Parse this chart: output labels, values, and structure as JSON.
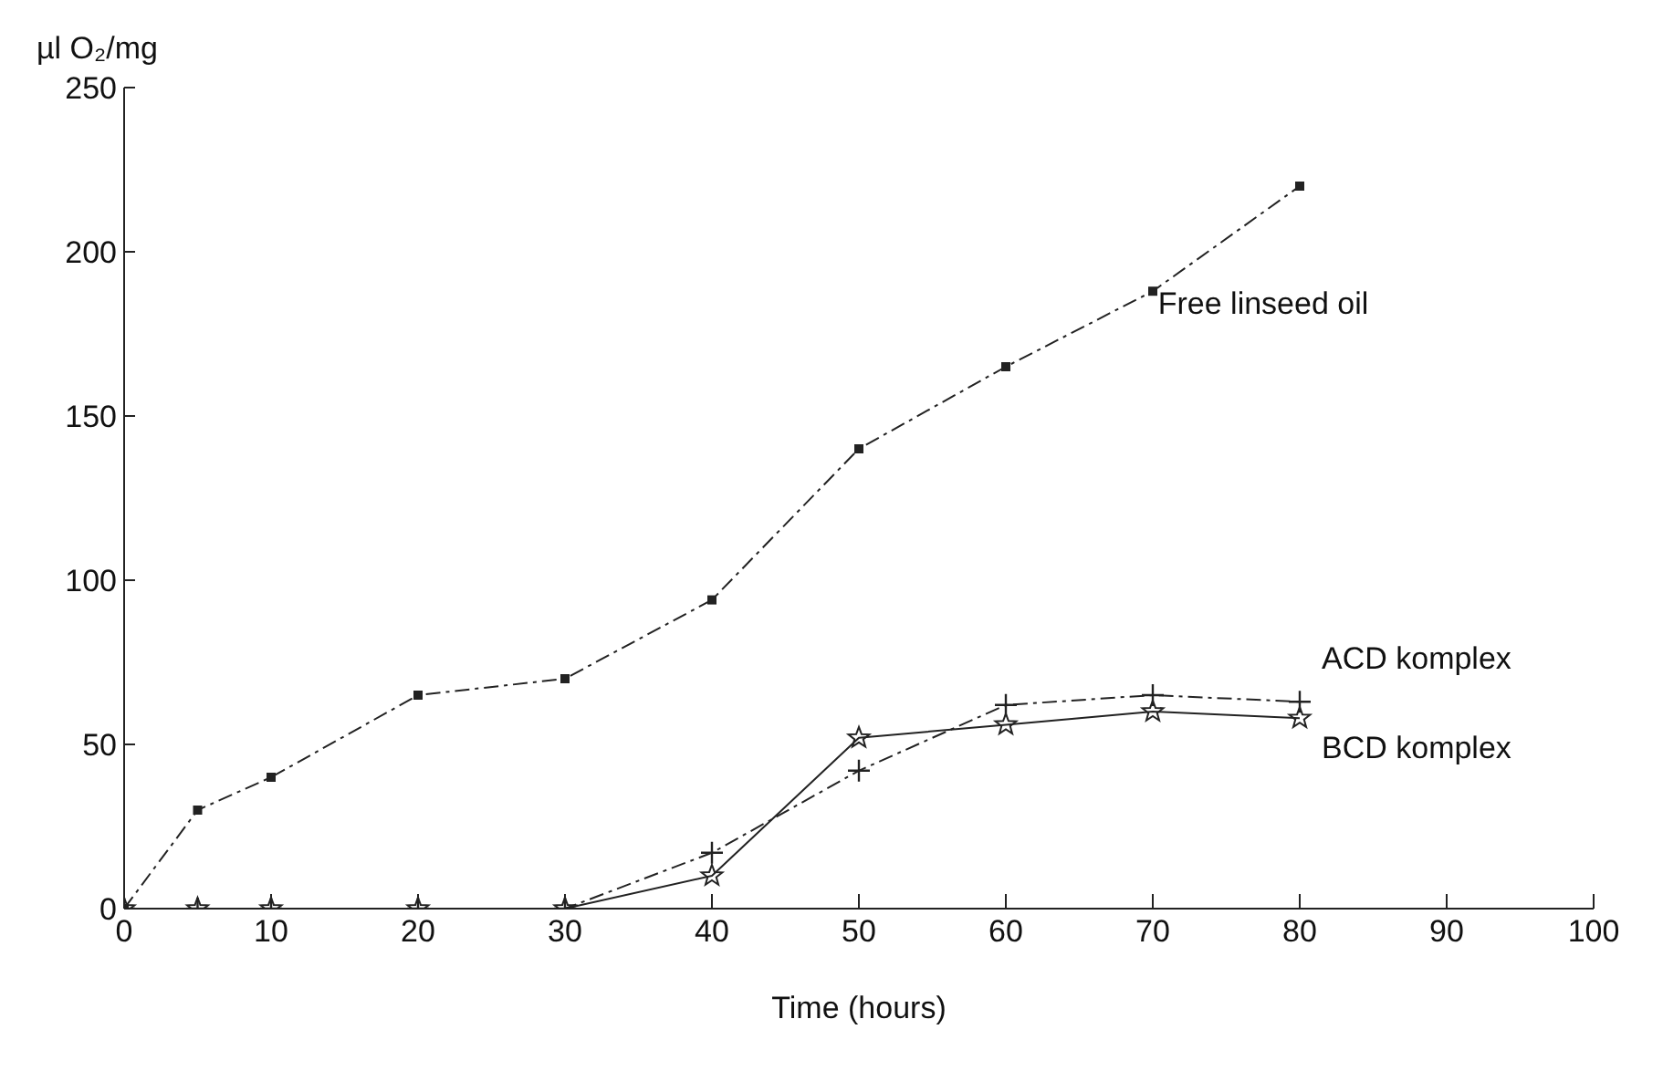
{
  "chart_data": {
    "type": "line",
    "xlabel": "Time (hours)",
    "ylabel": "µl O₂/mg",
    "xlim": [
      0,
      100
    ],
    "xticks": [
      0,
      10,
      20,
      30,
      40,
      50,
      60,
      70,
      80,
      90,
      100
    ],
    "ylim": [
      0,
      250
    ],
    "yticks": [
      0,
      50,
      100,
      150,
      200,
      250
    ],
    "grid": false,
    "legend": "right",
    "series": [
      {
        "name": "Free linseed oil",
        "color": "#222222",
        "marker": "square",
        "line_style": "dashed",
        "x": [
          0,
          5,
          10,
          20,
          30,
          40,
          50,
          60,
          70,
          80
        ],
        "values": [
          0,
          30,
          40,
          65,
          70,
          94,
          140,
          165,
          188,
          220
        ]
      },
      {
        "name": "ACD komplex",
        "color": "#222222",
        "marker": "cross",
        "line_style": "dashed",
        "x": [
          0,
          5,
          10,
          20,
          30,
          40,
          50,
          60,
          70,
          80
        ],
        "values": [
          0,
          0,
          0,
          0,
          0,
          17,
          42,
          62,
          65,
          63
        ]
      },
      {
        "name": "BCD komplex",
        "color": "#222222",
        "marker": "star",
        "line_style": "solid",
        "x": [
          0,
          5,
          10,
          20,
          30,
          40,
          50,
          60,
          70,
          80
        ],
        "values": [
          0,
          0,
          0,
          0,
          0,
          10,
          52,
          56,
          60,
          58
        ]
      }
    ]
  }
}
